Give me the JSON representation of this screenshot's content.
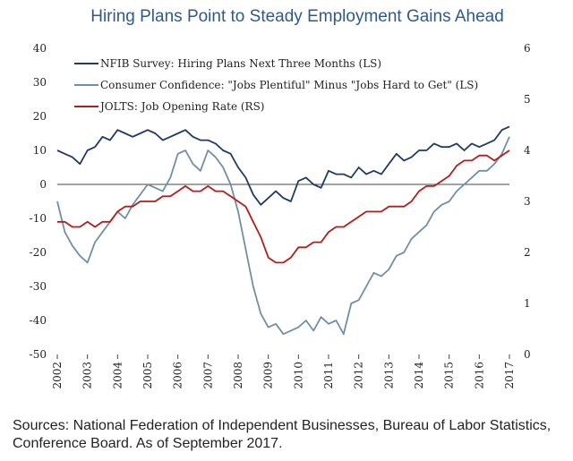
{
  "chart_data": {
    "type": "line",
    "title": "Hiring Plans Point to Steady Employment Gains Ahead",
    "xlabel": "",
    "ylabel_left": "",
    "ylabel_right": "",
    "x_ticks": [
      "2002",
      "2003",
      "2004",
      "2005",
      "2006",
      "2007",
      "2008",
      "2009",
      "2010",
      "2011",
      "2012",
      "2013",
      "2014",
      "2015",
      "2016",
      "2017"
    ],
    "x_range": [
      2002,
      2017
    ],
    "y_left_range": [
      -50,
      40
    ],
    "y_left_ticks": [
      "-50",
      "-40",
      "-30",
      "-20",
      "-10",
      "0",
      "10",
      "20",
      "30",
      "40"
    ],
    "y_right_range": [
      0,
      6
    ],
    "y_right_ticks": [
      "0",
      "1",
      "2",
      "3",
      "4",
      "5",
      "6"
    ],
    "grid": false,
    "legend_placement": "top-left",
    "series": [
      {
        "name": "NFIB Survey: Hiring Plans Next Three Months (LS)",
        "axis": "left",
        "color": "#1f3a64",
        "x": [
          2002.0,
          2002.25,
          2002.5,
          2002.75,
          2003.0,
          2003.25,
          2003.5,
          2003.75,
          2004.0,
          2004.25,
          2004.5,
          2004.75,
          2005.0,
          2005.25,
          2005.5,
          2005.75,
          2006.0,
          2006.25,
          2006.5,
          2006.75,
          2007.0,
          2007.25,
          2007.5,
          2007.75,
          2008.0,
          2008.25,
          2008.5,
          2008.75,
          2009.0,
          2009.25,
          2009.5,
          2009.75,
          2010.0,
          2010.25,
          2010.5,
          2010.75,
          2011.0,
          2011.25,
          2011.5,
          2011.75,
          2012.0,
          2012.25,
          2012.5,
          2012.75,
          2013.0,
          2013.25,
          2013.5,
          2013.75,
          2014.0,
          2014.25,
          2014.5,
          2014.75,
          2015.0,
          2015.25,
          2015.5,
          2015.75,
          2016.0,
          2016.25,
          2016.5,
          2016.75,
          2017.0
        ],
        "y": [
          10,
          9,
          8,
          6,
          10,
          11,
          14,
          13,
          16,
          15,
          14,
          15,
          16,
          15,
          13,
          14,
          15,
          16,
          14,
          13,
          13,
          12,
          10,
          9,
          5,
          2,
          -3,
          -6,
          -4,
          -2,
          -4,
          -5,
          1,
          2,
          0,
          -1,
          4,
          3,
          3,
          2,
          5,
          3,
          4,
          3,
          6,
          9,
          7,
          8,
          10,
          10,
          12,
          11,
          11,
          12,
          10,
          12,
          11,
          12,
          13,
          16,
          17
        ]
      },
      {
        "name": "Consumer Confidence: \"Jobs Plentiful\" Minus \"Jobs Hard to Get\" (LS)",
        "axis": "left",
        "color": "#6f8fa8",
        "x": [
          2002.0,
          2002.25,
          2002.5,
          2002.75,
          2003.0,
          2003.25,
          2003.5,
          2003.75,
          2004.0,
          2004.25,
          2004.5,
          2004.75,
          2005.0,
          2005.25,
          2005.5,
          2005.75,
          2006.0,
          2006.25,
          2006.5,
          2006.75,
          2007.0,
          2007.25,
          2007.5,
          2007.75,
          2008.0,
          2008.25,
          2008.5,
          2008.75,
          2009.0,
          2009.25,
          2009.5,
          2009.75,
          2010.0,
          2010.25,
          2010.5,
          2010.75,
          2011.0,
          2011.25,
          2011.5,
          2011.75,
          2012.0,
          2012.25,
          2012.5,
          2012.75,
          2013.0,
          2013.25,
          2013.5,
          2013.75,
          2014.0,
          2014.25,
          2014.5,
          2014.75,
          2015.0,
          2015.25,
          2015.5,
          2015.75,
          2016.0,
          2016.25,
          2016.5,
          2016.75,
          2017.0
        ],
        "y": [
          -5,
          -14,
          -18,
          -21,
          -23,
          -17,
          -14,
          -11,
          -8,
          -10,
          -6,
          -3,
          0,
          -1,
          -2,
          2,
          9,
          10,
          6,
          4,
          10,
          8,
          5,
          0,
          -8,
          -19,
          -30,
          -38,
          -42,
          -41,
          -44,
          -43,
          -42,
          -40,
          -43,
          -39,
          -41,
          -40,
          -44,
          -35,
          -34,
          -30,
          -26,
          -27,
          -25,
          -21,
          -20,
          -16,
          -14,
          -12,
          -8,
          -6,
          -5,
          -2,
          0,
          2,
          4,
          4,
          6,
          9,
          14
        ]
      },
      {
        "name": "JOLTS: Job Opening Rate (RS)",
        "axis": "right",
        "color": "#b21d1d",
        "x": [
          2002.0,
          2002.25,
          2002.5,
          2002.75,
          2003.0,
          2003.25,
          2003.5,
          2003.75,
          2004.0,
          2004.25,
          2004.5,
          2004.75,
          2005.0,
          2005.25,
          2005.5,
          2005.75,
          2006.0,
          2006.25,
          2006.5,
          2006.75,
          2007.0,
          2007.25,
          2007.5,
          2007.75,
          2008.0,
          2008.25,
          2008.5,
          2008.75,
          2009.0,
          2009.25,
          2009.5,
          2009.75,
          2010.0,
          2010.25,
          2010.5,
          2010.75,
          2011.0,
          2011.25,
          2011.5,
          2011.75,
          2012.0,
          2012.25,
          2012.5,
          2012.75,
          2013.0,
          2013.25,
          2013.5,
          2013.75,
          2014.0,
          2014.25,
          2014.5,
          2014.75,
          2015.0,
          2015.25,
          2015.5,
          2015.75,
          2016.0,
          2016.25,
          2016.5,
          2016.75,
          2017.0
        ],
        "y": [
          2.6,
          2.6,
          2.5,
          2.5,
          2.6,
          2.5,
          2.6,
          2.6,
          2.8,
          2.9,
          2.9,
          3.0,
          3.0,
          3.0,
          3.1,
          3.1,
          3.2,
          3.3,
          3.2,
          3.2,
          3.3,
          3.2,
          3.2,
          3.1,
          3.0,
          2.9,
          2.6,
          2.3,
          1.9,
          1.8,
          1.8,
          1.9,
          2.1,
          2.1,
          2.2,
          2.2,
          2.4,
          2.5,
          2.5,
          2.6,
          2.7,
          2.8,
          2.8,
          2.8,
          2.9,
          2.9,
          2.9,
          3.0,
          3.2,
          3.3,
          3.3,
          3.4,
          3.5,
          3.7,
          3.8,
          3.8,
          3.9,
          3.9,
          3.8,
          3.9,
          4.0
        ]
      }
    ]
  },
  "source_note": "Sources: National Federation of Independent Businesses, Bureau of Labor Statistics, Conference Board. As of September 2017."
}
